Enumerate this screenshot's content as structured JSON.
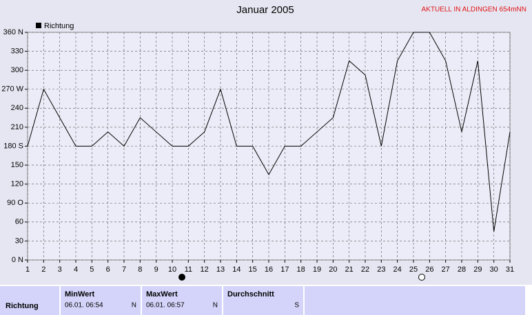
{
  "chart_data": {
    "type": "line",
    "title": "Januar 2005",
    "annotation": "AKTUELL IN ALDINGEN 654mNN",
    "x": [
      1,
      2,
      3,
      4,
      5,
      6,
      7,
      8,
      9,
      10,
      11,
      12,
      13,
      14,
      15,
      16,
      17,
      18,
      19,
      20,
      21,
      22,
      23,
      24,
      25,
      26,
      27,
      28,
      29,
      30,
      31
    ],
    "series": [
      {
        "name": "Richtung",
        "color": "#000000",
        "values": [
          180,
          270,
          225,
          180,
          180,
          202.5,
          180,
          225,
          202.5,
          180,
          180,
          202.5,
          270,
          180,
          180,
          135,
          180,
          180,
          202.5,
          225,
          315,
          292.5,
          180,
          315,
          360,
          360,
          315,
          202.5,
          315,
          45,
          202.5
        ]
      }
    ],
    "xlim": [
      1,
      31
    ],
    "xticks": [
      1,
      2,
      3,
      4,
      5,
      6,
      7,
      8,
      9,
      10,
      11,
      12,
      13,
      14,
      15,
      16,
      17,
      18,
      19,
      20,
      21,
      22,
      23,
      24,
      25,
      26,
      27,
      28,
      29,
      30,
      31
    ],
    "ylim": [
      0,
      360
    ],
    "yticks": [
      {
        "value": 0,
        "label": "0 N"
      },
      30,
      60,
      {
        "value": 90,
        "label": "90 O"
      },
      120,
      150,
      {
        "value": 180,
        "label": "180 S"
      },
      210,
      240,
      {
        "value": 270,
        "label": "270 W"
      },
      300,
      330,
      {
        "value": 360,
        "label": "360 N"
      }
    ],
    "grid": true
  },
  "summary_table": {
    "row_label": "Richtung",
    "columns": [
      {
        "header": "MinWert",
        "time": "06.01.  06:54",
        "value": "N"
      },
      {
        "header": "MaxWert",
        "time": "06.01.  06:57",
        "value": "N"
      },
      {
        "header": "Durchschnitt",
        "time": "",
        "value": "S"
      }
    ]
  }
}
